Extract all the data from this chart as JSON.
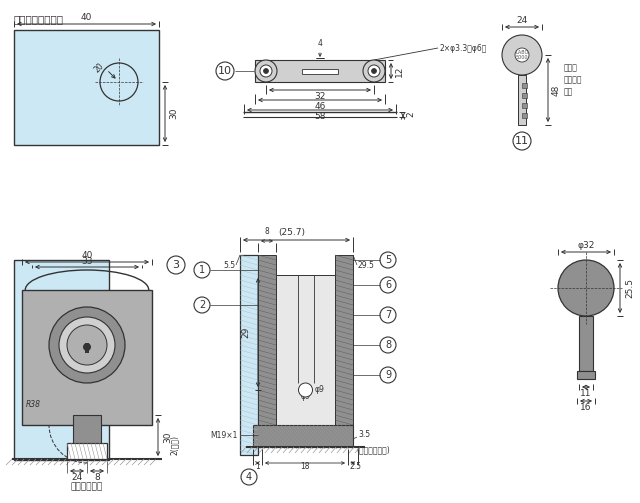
{
  "bg_color": "#ffffff",
  "glass_bg": "#cce8f4",
  "line_color": "#333333",
  "gray1": "#b0b0b0",
  "gray2": "#909090",
  "gray3": "#d0d0d0",
  "hatch_color": "#777777",
  "screw_label": "2×φ3.3穴φ6タ",
  "m19_label": "M19×1",
  "ring_label": "(リング調整代)",
  "footer_label": "キー番号刷印",
  "back_label": "裏面に\nキー番号\n刷印",
  "glass_title": "『ガラス加工図』",
  "fs": 6.5,
  "fs_sm": 5.5,
  "fs_md": 7.5
}
